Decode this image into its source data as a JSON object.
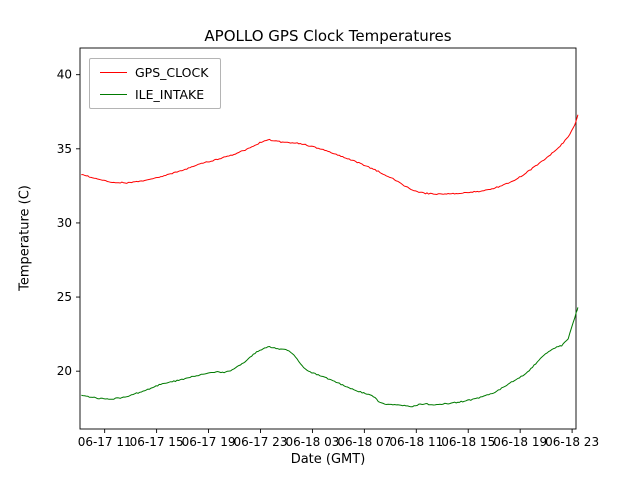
{
  "figure": {
    "title": "APOLLO GPS Clock Temperatures"
  },
  "chart_data": {
    "type": "line",
    "title": "APOLLO GPS Clock Temperatures",
    "xlabel": "Date (GMT)",
    "ylabel": "Temperature (C)",
    "x_unit": "hours since 06-17 00:00 GMT",
    "xlim": [
      9.1,
      47.3
    ],
    "ylim": [
      16.1,
      41.8
    ],
    "grid": false,
    "legend_position": "upper left",
    "xticks": {
      "values": [
        11,
        15,
        19,
        23,
        27,
        31,
        35,
        39,
        43,
        47
      ],
      "labels": [
        "06-17 11",
        "06-17 15",
        "06-17 19",
        "06-17 23",
        "06-18 03",
        "06-18 07",
        "06-18 11",
        "06-18 15",
        "06-18 19",
        "06-18 23"
      ]
    },
    "yticks": {
      "values": [
        20,
        25,
        30,
        35,
        40
      ],
      "labels": [
        "20",
        "25",
        "30",
        "35",
        "40"
      ]
    },
    "x": [
      9.2,
      9.7,
      10.2,
      10.7,
      11.2,
      11.7,
      12.2,
      12.7,
      13.2,
      13.7,
      14.2,
      14.7,
      15.2,
      15.7,
      16.2,
      16.7,
      17.2,
      17.7,
      18.2,
      18.7,
      19.2,
      19.7,
      20.2,
      20.7,
      21.2,
      21.7,
      22.2,
      22.7,
      23.2,
      23.7,
      24.2,
      24.7,
      25.2,
      25.7,
      26.2,
      26.7,
      27.2,
      27.7,
      28.2,
      28.7,
      29.2,
      29.7,
      30.2,
      30.7,
      31.2,
      31.7,
      32.2,
      32.7,
      33.2,
      33.7,
      34.2,
      34.7,
      35.2,
      35.7,
      36.2,
      36.7,
      37.2,
      37.7,
      38.2,
      38.7,
      39.2,
      39.7,
      40.2,
      40.7,
      41.2,
      41.7,
      42.2,
      42.7,
      43.2,
      43.7,
      44.2,
      44.7,
      45.2,
      45.7,
      46.2,
      46.7,
      47.2,
      47.45
    ],
    "series": [
      {
        "name": "GPS_CLOCK",
        "color": "#ff0000",
        "values": [
          33.3,
          33.15,
          33.0,
          32.9,
          32.8,
          32.75,
          32.72,
          32.7,
          32.74,
          32.8,
          32.88,
          32.98,
          33.08,
          33.22,
          33.35,
          33.45,
          33.6,
          33.78,
          33.95,
          34.08,
          34.18,
          34.3,
          34.42,
          34.55,
          34.7,
          34.88,
          35.08,
          35.3,
          35.52,
          35.6,
          35.52,
          35.45,
          35.42,
          35.4,
          35.32,
          35.22,
          35.1,
          34.96,
          34.82,
          34.66,
          34.5,
          34.35,
          34.18,
          34.0,
          33.82,
          33.62,
          33.42,
          33.2,
          32.98,
          32.72,
          32.45,
          32.22,
          32.08,
          32.0,
          31.96,
          31.95,
          31.96,
          31.98,
          32.0,
          32.02,
          32.06,
          32.12,
          32.18,
          32.28,
          32.4,
          32.55,
          32.72,
          32.95,
          33.22,
          33.52,
          33.85,
          34.18,
          34.52,
          34.9,
          35.3,
          35.8,
          36.6,
          37.3
        ]
      },
      {
        "name": "ILE_INTAKE",
        "color": "#007a00",
        "values": [
          18.35,
          18.28,
          18.22,
          18.15,
          18.1,
          18.14,
          18.2,
          18.3,
          18.44,
          18.58,
          18.72,
          18.88,
          19.08,
          19.22,
          19.3,
          19.38,
          19.5,
          19.62,
          19.72,
          19.82,
          19.9,
          19.95,
          19.92,
          20.02,
          20.28,
          20.58,
          20.95,
          21.28,
          21.52,
          21.65,
          21.55,
          21.48,
          21.4,
          20.95,
          20.35,
          20.0,
          19.82,
          19.66,
          19.5,
          19.32,
          19.12,
          18.92,
          18.76,
          18.6,
          18.45,
          18.3,
          17.88,
          17.76,
          17.76,
          17.7,
          17.66,
          17.62,
          17.75,
          17.8,
          17.74,
          17.78,
          17.8,
          17.84,
          17.9,
          17.98,
          18.06,
          18.16,
          18.3,
          18.46,
          18.65,
          18.92,
          19.2,
          19.45,
          19.7,
          20.05,
          20.5,
          21.0,
          21.35,
          21.58,
          21.72,
          22.2,
          23.6,
          24.3
        ]
      }
    ]
  }
}
